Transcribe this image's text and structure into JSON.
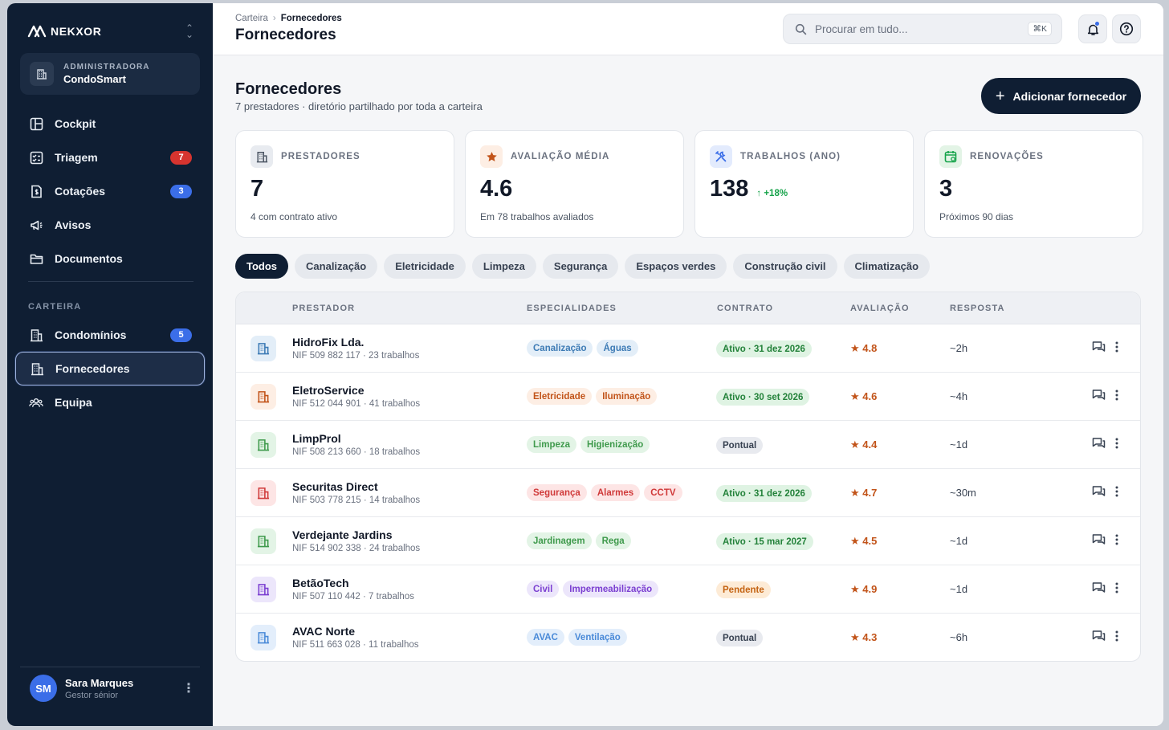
{
  "brand": {
    "name": "NEKXOR"
  },
  "org": {
    "kicker": "ADMINISTRADORA",
    "name": "CondoSmart"
  },
  "nav": {
    "main": [
      {
        "label": "Cockpit",
        "icon": "layout-icon"
      },
      {
        "label": "Triagem",
        "icon": "checklist-icon",
        "badge": "7",
        "badge_color": "#d6342f"
      },
      {
        "label": "Cotações",
        "icon": "quote-icon",
        "badge": "3",
        "badge_color": "#3b6ee8"
      },
      {
        "label": "Avisos",
        "icon": "megaphone-icon"
      },
      {
        "label": "Documentos",
        "icon": "folder-icon"
      }
    ],
    "section_label": "CARTEIRA",
    "portfolio": [
      {
        "label": "Condomínios",
        "icon": "building-icon",
        "badge": "5"
      },
      {
        "label": "Fornecedores",
        "icon": "building-icon",
        "active": true
      },
      {
        "label": "Equipa",
        "icon": "team-icon"
      }
    ]
  },
  "user": {
    "initials": "SM",
    "name": "Sara Marques",
    "role": "Gestor sénior"
  },
  "topbar": {
    "crumbs": [
      "Carteira",
      "Fornecedores"
    ],
    "title": "Fornecedores",
    "search_placeholder": "Procurar em tudo...",
    "search_shortcut": "⌘K"
  },
  "page": {
    "title": "Fornecedores",
    "subtitle": "7 prestadores · diretório partilhado por toda a carteira",
    "add_button": "Adicionar fornecedor"
  },
  "kpis": [
    {
      "label": "PRESTADORES",
      "value": "7",
      "note": "4 com contrato ativo",
      "icon": "building-icon",
      "tone": "#e8ebf0",
      "icon_color": "#4b5563"
    },
    {
      "label": "AVALIAÇÃO MÉDIA",
      "value": "4.6",
      "note": "Em 78 trabalhos avaliados",
      "icon": "star-icon",
      "tone": "#fdeee4",
      "icon_color": "#c2541a"
    },
    {
      "label": "TRABALHOS (ANO)",
      "value": "138",
      "trend": "+18%",
      "note": "",
      "icon": "tools-icon",
      "tone": "#e3ebfd",
      "icon_color": "#3b6ee8"
    },
    {
      "label": "RENOVAÇÕES",
      "value": "3",
      "note": "Próximos 90 dias",
      "icon": "calendar-icon",
      "tone": "#e3f4e6",
      "icon_color": "#16a34a"
    }
  ],
  "filters": [
    "Todos",
    "Canalização",
    "Eletricidade",
    "Limpeza",
    "Segurança",
    "Espaços verdes",
    "Construção civil",
    "Climatização"
  ],
  "table": {
    "headers": [
      "PRESTADOR",
      "ESPECIALIDADES",
      "CONTRATO",
      "AVALIAÇÃO",
      "RESPOSTA"
    ],
    "rows": [
      {
        "name": "HidroFix Lda.",
        "meta": "NIF 509 882 117 · 23 trabalhos",
        "tags": [
          "Canalização",
          "Águas"
        ],
        "tone": "blue",
        "contract": "Ativo · 31 dez 2026",
        "status": "active",
        "rating": "★ 4.8",
        "resp": "~2h"
      },
      {
        "name": "EletroService",
        "meta": "NIF 512 044 901 · 41 trabalhos",
        "tags": [
          "Eletricidade",
          "Iluminação"
        ],
        "tone": "orange",
        "contract": "Ativo · 30 set 2026",
        "status": "active",
        "rating": "★ 4.6",
        "resp": "~4h"
      },
      {
        "name": "LimpProl",
        "meta": "NIF 508 213 660 · 18 trabalhos",
        "tags": [
          "Limpeza",
          "Higienização"
        ],
        "tone": "green",
        "contract": "Pontual",
        "status": "oneoff",
        "rating": "★ 4.4",
        "resp": "~1d"
      },
      {
        "name": "Securitas Direct",
        "meta": "NIF 503 778 215 · 14 trabalhos",
        "tags": [
          "Segurança",
          "Alarmes",
          "CCTV"
        ],
        "tone": "red",
        "contract": "Ativo · 31 dez 2026",
        "status": "active",
        "rating": "★ 4.7",
        "resp": "~30m"
      },
      {
        "name": "Verdejante Jardins",
        "meta": "NIF 514 902 338 · 24 trabalhos",
        "tags": [
          "Jardinagem",
          "Rega"
        ],
        "tone": "green",
        "contract": "Ativo · 15 mar 2027",
        "status": "active",
        "rating": "★ 4.5",
        "resp": "~1d"
      },
      {
        "name": "BetãoTech",
        "meta": "NIF 507 110 442 · 7 trabalhos",
        "tags": [
          "Civil",
          "Impermeabilização"
        ],
        "tone": "purple",
        "contract": "Pendente",
        "status": "pending",
        "rating": "★ 4.9",
        "resp": "~1d"
      },
      {
        "name": "AVAC Norte",
        "meta": "NIF 511 663 028 · 11 trabalhos",
        "tags": [
          "AVAC",
          "Ventilação"
        ],
        "tone": "sky",
        "contract": "Pontual",
        "status": "oneoff",
        "rating": "★ 4.3",
        "resp": "~6h"
      }
    ]
  },
  "colors": {
    "sidebar_bg": "#0f1e33",
    "accent": "#3b6ee8",
    "tones": {
      "blue": {
        "bg": "#e3eef8",
        "fg": "#3d7bb5"
      },
      "orange": {
        "bg": "#fdeee4",
        "fg": "#c2541a"
      },
      "green": {
        "bg": "#e3f4e6",
        "fg": "#3f9a4c"
      },
      "red": {
        "bg": "#fde5e5",
        "fg": "#d03a3a"
      },
      "purple": {
        "bg": "#ece6fb",
        "fg": "#7b3fd1"
      },
      "sky": {
        "bg": "#e3eefb",
        "fg": "#4a8ad8"
      }
    },
    "status": {
      "active": {
        "bg": "#dff3e3",
        "fg": "#23823a"
      },
      "oneoff": {
        "bg": "#e8eaef",
        "fg": "#374151"
      },
      "pending": {
        "bg": "#fdebd6",
        "fg": "#c46312"
      }
    }
  }
}
